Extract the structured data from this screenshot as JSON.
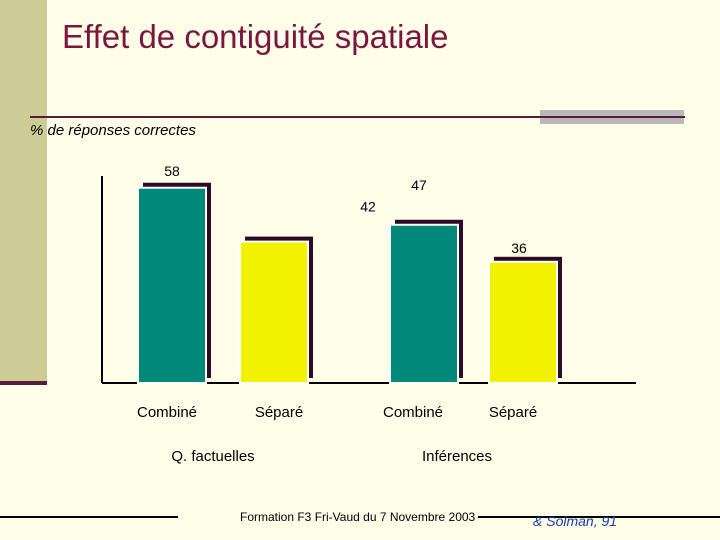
{
  "slide": {
    "title": "Effet de contiguité spatiale",
    "footer": "Formation F3 Fri-Vaud du 7 Novembre 2003",
    "citation": "& Solman, 91"
  },
  "colors": {
    "title": "#7a1640",
    "combine_bar": "#008878",
    "separe_bar": "#f2f200",
    "bar_shadow": "#2d0a25",
    "axis": "#000000",
    "sidebar": "#cdcc95",
    "background": "#fefee9"
  },
  "chart_data": {
    "type": "bar",
    "ylabel": "% de réponses correctes",
    "ylim": [
      0,
      60
    ],
    "groups": [
      "Q. factuelles",
      "Inférences"
    ],
    "bars": [
      {
        "group": "Q. factuelles",
        "category": "Combiné",
        "value": 58,
        "label": "58"
      },
      {
        "group": "Q. factuelles",
        "category": "Séparé",
        "value": 42,
        "label": "42"
      },
      {
        "group": "Inférences",
        "category": "Combiné",
        "value": 47,
        "label": "47"
      },
      {
        "group": "Inférences",
        "category": "Séparé",
        "value": 36,
        "label": "36"
      }
    ]
  }
}
